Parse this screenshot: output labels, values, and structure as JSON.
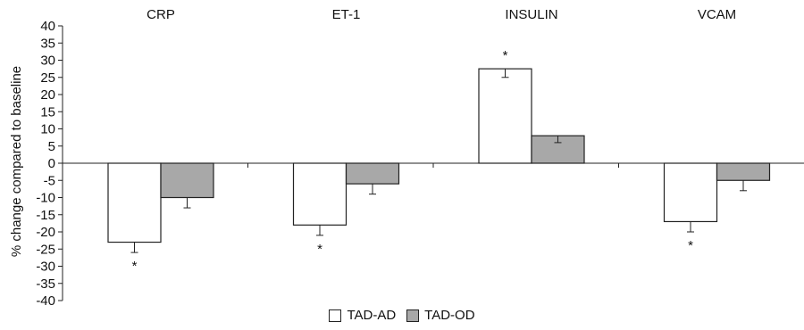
{
  "chart_data": {
    "type": "bar",
    "ylabel": "% change compared to baseline",
    "categories": [
      "CRP",
      "ET-1",
      "INSULIN",
      "VCAM"
    ],
    "ylim": [
      -40,
      40
    ],
    "yticks": [
      40,
      35,
      30,
      25,
      20,
      15,
      10,
      5,
      0,
      -5,
      -10,
      -15,
      -20,
      -25,
      -30,
      -35,
      -40
    ],
    "series": [
      {
        "name": "TAD-AD",
        "color": "#ffffff",
        "values": [
          -23,
          -18,
          27.5,
          -17
        ],
        "errors": [
          3,
          3,
          2.5,
          3
        ],
        "significant": [
          true,
          true,
          true,
          true
        ]
      },
      {
        "name": "TAD-OD",
        "color": "#a8a8a8",
        "values": [
          -10,
          -6,
          8,
          -5
        ],
        "errors": [
          3,
          3,
          2,
          3
        ],
        "significant": [
          false,
          false,
          false,
          false
        ]
      }
    ],
    "significance_marker": "*",
    "legend_position": "bottom-center",
    "grid": false
  }
}
